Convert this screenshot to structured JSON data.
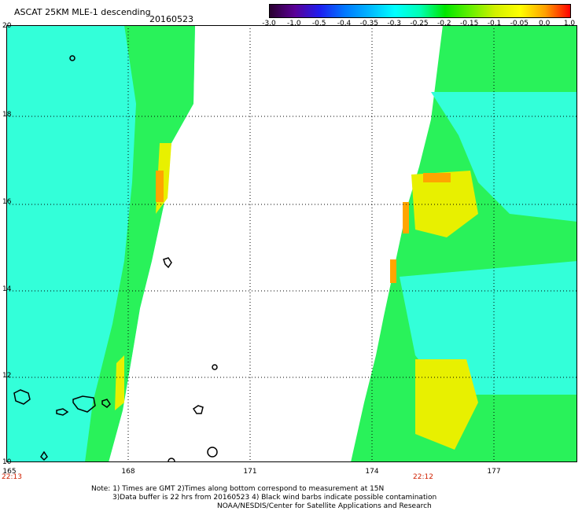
{
  "header": {
    "title": "ASCAT 25KM MLE-1 descending",
    "date": "20160523"
  },
  "colorbar": {
    "labels": [
      "-3.0",
      "-1.0",
      "-0.5",
      "-0.4",
      "-0.35",
      "-0.3",
      "-0.25",
      "-0.2",
      "-0.15",
      "-0.1",
      "-0.05",
      "0.0",
      "1.0"
    ],
    "colors": [
      "#2a0030",
      "#5a0096",
      "#1e1ef0",
      "#0078ff",
      "#00b8ff",
      "#00ffff",
      "#00ffb4",
      "#00e600",
      "#64f000",
      "#d2f000",
      "#ffff00",
      "#ffa000",
      "#ff0000"
    ]
  },
  "map": {
    "lat_labels": [
      "20",
      "18",
      "16",
      "14",
      "12",
      "10"
    ],
    "lon_labels": [
      "165",
      "168",
      "171",
      "174",
      "177"
    ],
    "times": {
      "left": "22:13",
      "right": "22:12"
    },
    "land_color": "#000000",
    "swath_colors": {
      "cyan": "#33ffd9",
      "green": "#29f25a",
      "yellow": "#e8f000",
      "orange": "#ffa500"
    }
  },
  "notes": {
    "line1": "Note: 1) Times are GMT 2)Times along bottom correspond to measurement at 15N",
    "line2": "3)Data buffer is 22 hrs from 20160523 4) Black wind barbs indicate possible contamination",
    "line3": "NOAA/NESDIS/Center for Satellite Applications and Research"
  }
}
